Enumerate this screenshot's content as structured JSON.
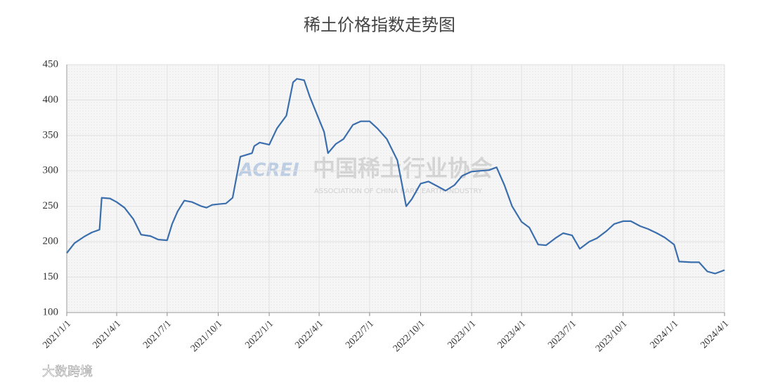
{
  "chart_data": {
    "type": "line",
    "title": "稀土价格指数走势图",
    "x": [
      "2021/1/1",
      "2021/1/15",
      "2021/2/1",
      "2021/2/15",
      "2021/3/1",
      "2021/3/5",
      "2021/3/20",
      "2021/4/1",
      "2021/4/15",
      "2021/5/1",
      "2021/5/15",
      "2021/6/1",
      "2021/6/15",
      "2021/7/1",
      "2021/7/10",
      "2021/7/20",
      "2021/8/1",
      "2021/8/15",
      "2021/9/1",
      "2021/9/10",
      "2021/9/20",
      "2021/10/1",
      "2021/10/15",
      "2021/10/27",
      "2021/11/10",
      "2021/12/1",
      "2021/12/5",
      "2021/12/15",
      "2022/1/1",
      "2022/1/15",
      "2022/2/1",
      "2022/2/13",
      "2022/2/20",
      "2022/3/5",
      "2022/3/15",
      "2022/3/28",
      "2022/4/10",
      "2022/4/17",
      "2022/5/1",
      "2022/5/15",
      "2022/6/1",
      "2022/6/15",
      "2022/7/1",
      "2022/7/15",
      "2022/8/1",
      "2022/8/20",
      "2022/9/5",
      "2022/9/15",
      "2022/10/1",
      "2022/10/15",
      "2022/11/1",
      "2022/11/15",
      "2022/12/1",
      "2022/12/15",
      "2023/1/1",
      "2023/1/15",
      "2023/2/1",
      "2023/2/15",
      "2023/3/1",
      "2023/3/15",
      "2023/4/1",
      "2023/4/15",
      "2023/5/1",
      "2023/5/15",
      "2023/6/1",
      "2023/6/15",
      "2023/7/1",
      "2023/7/15",
      "2023/8/1",
      "2023/8/15",
      "2023/9/1",
      "2023/9/15",
      "2023/10/1",
      "2023/10/15",
      "2023/11/1",
      "2023/11/15",
      "2023/12/1",
      "2023/12/15",
      "2024/1/1",
      "2024/1/10",
      "2024/2/1",
      "2024/2/15",
      "2024/3/1",
      "2024/3/15",
      "2024/4/1"
    ],
    "values": [
      184,
      198,
      207,
      213,
      217,
      262,
      261,
      256,
      248,
      232,
      210,
      208,
      203,
      202,
      225,
      243,
      258,
      256,
      250,
      248,
      252,
      253,
      254,
      262,
      320,
      325,
      335,
      340,
      337,
      360,
      378,
      425,
      430,
      428,
      405,
      380,
      355,
      325,
      338,
      345,
      365,
      370,
      370,
      360,
      345,
      315,
      250,
      260,
      282,
      285,
      278,
      272,
      280,
      293,
      299,
      300,
      301,
      305,
      280,
      250,
      228,
      220,
      196,
      195,
      205,
      212,
      209,
      190,
      200,
      205,
      215,
      225,
      229,
      229,
      222,
      218,
      212,
      206,
      196,
      172,
      171,
      171,
      158,
      155,
      160
    ],
    "color": "#3b6ead",
    "ylim": [
      100,
      450
    ],
    "yticks": [
      100,
      150,
      200,
      250,
      300,
      350,
      400,
      450
    ],
    "xlim": [
      "2021/1/1",
      "2024/4/1"
    ],
    "xticks": [
      "2021/1/1",
      "2021/4/1",
      "2021/7/1",
      "2021/10/1",
      "2022/1/1",
      "2022/4/1",
      "2022/7/1",
      "2022/10/1",
      "2023/1/1",
      "2023/4/1",
      "2023/7/1",
      "2023/10/1",
      "2024/1/1",
      "2024/4/1"
    ],
    "grid": true,
    "watermark": {
      "logo": "ACREI",
      "name": "中国稀土行业协会",
      "subtitle": "ASSOCIATION OF CHINA RARE EARTH INDUSTRY"
    },
    "source": "大数跨境"
  }
}
